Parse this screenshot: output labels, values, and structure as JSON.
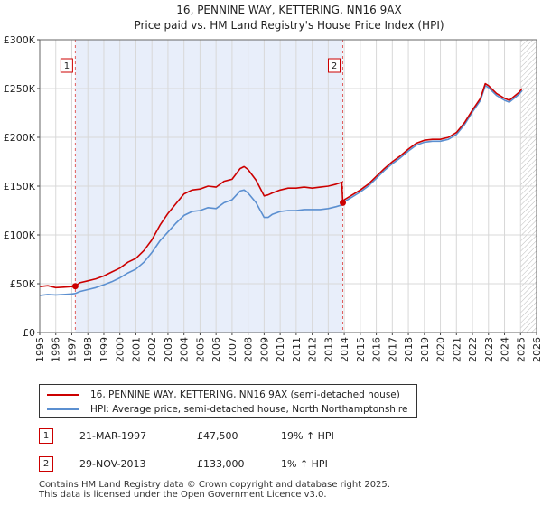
{
  "chart_data": {
    "type": "line",
    "title": "16, PENNINE WAY, KETTERING, NN16 9AX",
    "subtitle": "Price paid vs. HM Land Registry's House Price Index (HPI)",
    "xlabel": "",
    "ylabel": "",
    "xlim": [
      1995.0,
      2026.0
    ],
    "ylim": [
      0,
      300000
    ],
    "yticks": [
      0,
      50000,
      100000,
      150000,
      200000,
      250000,
      300000
    ],
    "ytick_labels": [
      "£0",
      "£50K",
      "£100K",
      "£150K",
      "£200K",
      "£250K",
      "£300K"
    ],
    "xticks": [
      "1995",
      "1996",
      "1997",
      "1998",
      "1999",
      "2000",
      "2001",
      "2002",
      "2003",
      "2004",
      "2005",
      "2006",
      "2007",
      "2008",
      "2009",
      "2010",
      "2011",
      "2012",
      "2013",
      "2014",
      "2015",
      "2016",
      "2017",
      "2018",
      "2019",
      "2020",
      "2021",
      "2022",
      "2023",
      "2024",
      "2025",
      "2026"
    ],
    "grid": true,
    "shaded_range": [
      1997.22,
      2013.91
    ],
    "hatched_from": 2025.0,
    "series": [
      {
        "name": "16, PENNINE WAY, KETTERING, NN16 9AX (semi-detached house)",
        "color": "#cc0000",
        "x": [
          1995.0,
          1995.5,
          1996.0,
          1996.5,
          1997.0,
          1997.22,
          1997.5,
          1998.0,
          1998.5,
          1999.0,
          1999.5,
          2000.0,
          2000.5,
          2001.0,
          2001.5,
          2002.0,
          2002.5,
          2003.0,
          2003.5,
          2004.0,
          2004.5,
          2005.0,
          2005.5,
          2006.0,
          2006.5,
          2007.0,
          2007.5,
          2007.75,
          2008.0,
          2008.5,
          2009.0,
          2009.25,
          2009.5,
          2010.0,
          2010.5,
          2011.0,
          2011.5,
          2012.0,
          2012.5,
          2013.0,
          2013.5,
          2013.85,
          2013.91,
          2014.0,
          2014.5,
          2015.0,
          2015.5,
          2016.0,
          2016.5,
          2017.0,
          2017.5,
          2018.0,
          2018.5,
          2019.0,
          2019.5,
          2020.0,
          2020.5,
          2021.0,
          2021.5,
          2022.0,
          2022.5,
          2022.8,
          2023.0,
          2023.5,
          2024.0,
          2024.3,
          2024.6,
          2024.9,
          2025.1
        ],
        "values": [
          47000,
          48000,
          46000,
          46500,
          47000,
          47500,
          51000,
          53000,
          55000,
          58000,
          62000,
          66000,
          72000,
          76000,
          84000,
          95000,
          110000,
          122000,
          132000,
          142000,
          146000,
          147000,
          150000,
          149000,
          155000,
          157000,
          168000,
          170000,
          167000,
          156000,
          140000,
          141000,
          143000,
          146000,
          148000,
          148000,
          149000,
          148000,
          149000,
          150000,
          152000,
          154000,
          133000,
          136000,
          141000,
          146000,
          152000,
          160000,
          168000,
          175000,
          181000,
          188000,
          194000,
          197000,
          198000,
          198000,
          200000,
          205000,
          215000,
          228000,
          240000,
          255000,
          253000,
          245000,
          240000,
          238000,
          242000,
          246000,
          250000
        ]
      },
      {
        "name": "HPI: Average price, semi-detached house, North Northamptonshire",
        "color": "#5b8fd0",
        "x": [
          1995.0,
          1995.5,
          1996.0,
          1996.5,
          1997.0,
          1997.22,
          1997.5,
          1998.0,
          1998.5,
          1999.0,
          1999.5,
          2000.0,
          2000.5,
          2001.0,
          2001.5,
          2002.0,
          2002.5,
          2003.0,
          2003.5,
          2004.0,
          2004.5,
          2005.0,
          2005.5,
          2006.0,
          2006.5,
          2007.0,
          2007.5,
          2007.75,
          2008.0,
          2008.5,
          2009.0,
          2009.25,
          2009.5,
          2010.0,
          2010.5,
          2011.0,
          2011.5,
          2012.0,
          2012.5,
          2013.0,
          2013.5,
          2013.91,
          2014.0,
          2014.5,
          2015.0,
          2015.5,
          2016.0,
          2016.5,
          2017.0,
          2017.5,
          2018.0,
          2018.5,
          2019.0,
          2019.5,
          2020.0,
          2020.5,
          2021.0,
          2021.5,
          2022.0,
          2022.5,
          2022.8,
          2023.0,
          2023.5,
          2024.0,
          2024.3,
          2024.6,
          2024.9,
          2025.1
        ],
        "values": [
          38000,
          39000,
          38500,
          39000,
          39500,
          40000,
          42000,
          44000,
          46000,
          49000,
          52000,
          56000,
          61000,
          65000,
          72000,
          82000,
          94000,
          103000,
          112000,
          120000,
          124000,
          125000,
          128000,
          127000,
          133000,
          136000,
          145000,
          146000,
          143000,
          133000,
          118000,
          118000,
          121000,
          124000,
          125000,
          125000,
          126000,
          126000,
          126000,
          127000,
          129000,
          131000,
          134000,
          139000,
          144000,
          150000,
          158000,
          166000,
          173000,
          179000,
          186000,
          192000,
          195000,
          196000,
          196000,
          198000,
          203000,
          213000,
          226000,
          238000,
          253000,
          251000,
          243000,
          238000,
          236000,
          240000,
          244000,
          248000
        ]
      }
    ],
    "sales": [
      {
        "label": "1",
        "x": 1997.22,
        "value": 47500
      },
      {
        "label": "2",
        "x": 2013.91,
        "value": 133000
      }
    ]
  },
  "legend": {
    "property_label": "16, PENNINE WAY, KETTERING, NN16 9AX (semi-detached house)",
    "hpi_label": "HPI: Average price, semi-detached house, North Northamptonshire"
  },
  "sales_table": [
    {
      "num": "1",
      "date": "21-MAR-1997",
      "price": "£47,500",
      "hpi": "19% ↑ HPI"
    },
    {
      "num": "2",
      "date": "29-NOV-2013",
      "price": "£133,000",
      "hpi": "1% ↑ HPI"
    }
  ],
  "footer": {
    "line1": "Contains HM Land Registry data © Crown copyright and database right 2025.",
    "line2": "This data is licensed under the Open Government Licence v3.0."
  }
}
